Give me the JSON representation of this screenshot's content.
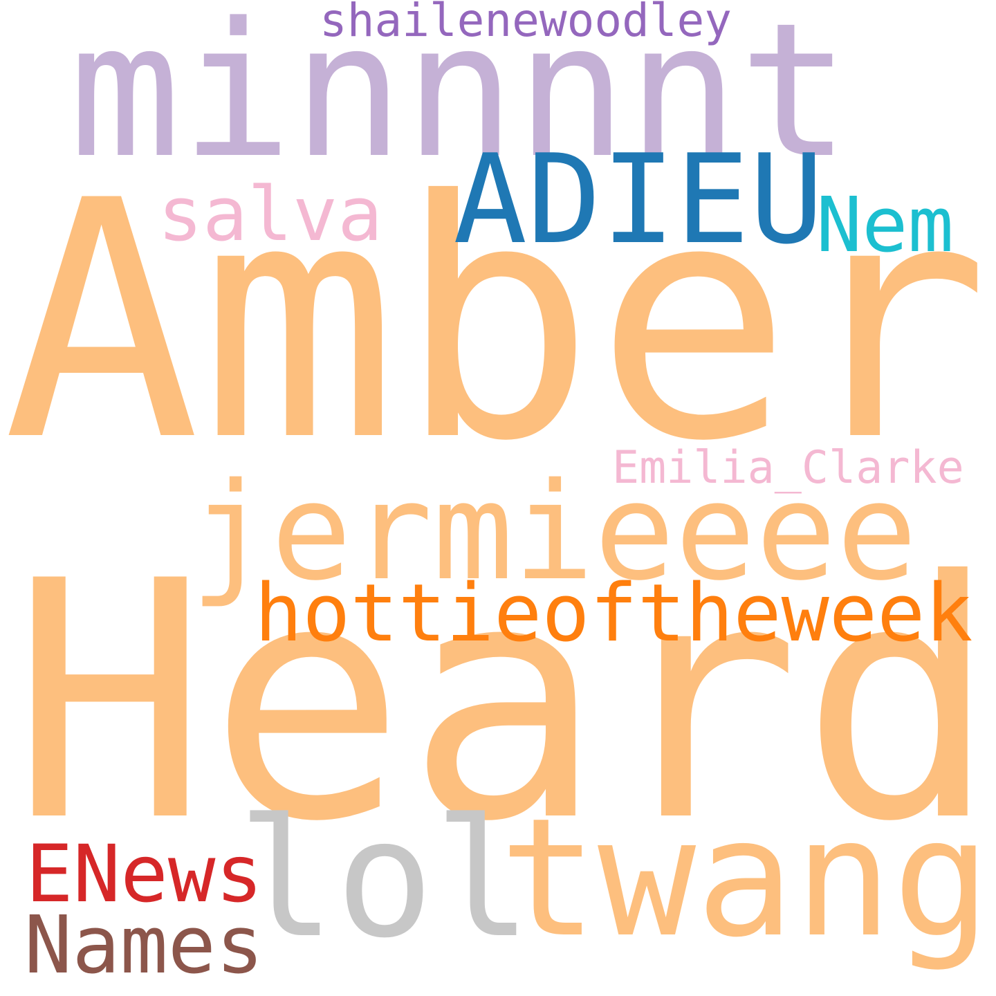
{
  "words": [
    {
      "text": "Amber",
      "color": "#fdbf7e"
    },
    {
      "text": "Heard",
      "color": "#fdbf7e"
    },
    {
      "text": "minnnnt",
      "color": "#c5b1d6"
    },
    {
      "text": "ADIEU",
      "color": "#1f78b4"
    },
    {
      "text": "Nem",
      "color": "#1cbfd0"
    },
    {
      "text": "salva",
      "color": "#f4b8d2"
    },
    {
      "text": "shailenewoodley",
      "color": "#9467bd"
    },
    {
      "text": "jermieeee",
      "color": "#fdbf7e"
    },
    {
      "text": "Emilia_Clarke",
      "color": "#f4b8d2"
    },
    {
      "text": "hottieoftheweek",
      "color": "#ff7f0e"
    },
    {
      "text": "lol",
      "color": "#c7c7c7"
    },
    {
      "text": "twang",
      "color": "#fdbf7e"
    },
    {
      "text": "ENews",
      "color": "#d62728"
    },
    {
      "text": "Names",
      "color": "#8c564b"
    }
  ]
}
